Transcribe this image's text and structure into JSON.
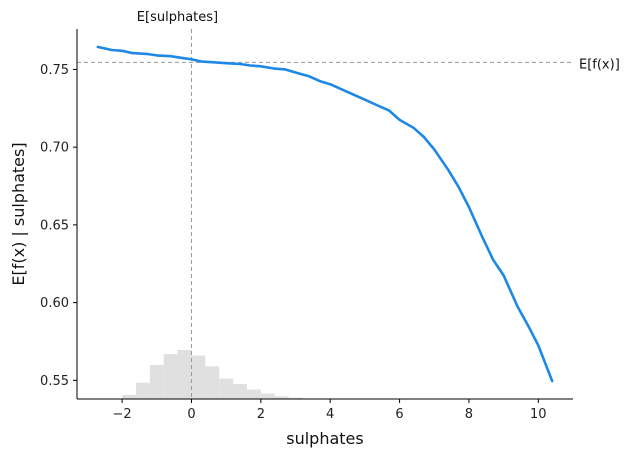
{
  "chart_data": {
    "type": "line",
    "xlabel": "sulphates",
    "ylabel": "E[f(x) | sulphates]",
    "xlim": [
      -3.3,
      11.0
    ],
    "ylim": [
      0.538,
      0.776
    ],
    "x_ticks": [
      -2,
      0,
      2,
      4,
      6,
      8,
      10
    ],
    "x_tick_labels": [
      "−2",
      "0",
      "2",
      "4",
      "6",
      "8",
      "10"
    ],
    "y_ticks": [
      0.55,
      0.6,
      0.65,
      0.7,
      0.75
    ],
    "y_tick_labels": [
      "0.55",
      "0.60",
      "0.65",
      "0.70",
      "0.75"
    ],
    "reference_lines": {
      "vertical": {
        "x": 0,
        "label": "E[sulphates]"
      },
      "horizontal": {
        "y": 0.7545,
        "label": "E[f(x)]"
      }
    },
    "colors": {
      "line": "#1E88E5",
      "histogram": "#e0e0e0",
      "reference": "#999999",
      "axis": "#000000"
    },
    "series": [
      {
        "x": [
          -2.7,
          -2.3,
          -2.0,
          -1.7,
          -1.3,
          -1.0,
          -0.6,
          -0.3,
          0.0,
          0.3,
          0.7,
          1.0,
          1.4,
          1.7,
          2.0,
          2.4,
          2.7,
          3.0,
          3.4,
          3.7,
          4.0,
          4.4,
          4.7,
          5.0,
          5.4,
          5.7,
          6.0,
          6.4,
          6.7,
          7.0,
          7.4,
          7.7,
          8.0,
          8.4,
          8.7,
          9.0,
          9.4,
          9.7,
          10.0,
          10.4
        ],
        "values": [
          0.7645,
          0.7625,
          0.762,
          0.7605,
          0.76,
          0.759,
          0.7585,
          0.7575,
          0.7565,
          0.755,
          0.7545,
          0.754,
          0.7535,
          0.7525,
          0.752,
          0.7505,
          0.75,
          0.748,
          0.7455,
          0.7425,
          0.7405,
          0.7365,
          0.7335,
          0.7305,
          0.7265,
          0.7235,
          0.7175,
          0.7125,
          0.7065,
          0.6985,
          0.6855,
          0.6745,
          0.6615,
          0.6415,
          0.6275,
          0.6175,
          0.5975,
          0.5855,
          0.5725,
          0.5495
        ]
      }
    ],
    "histogram": {
      "bin_width": 0.4,
      "bins_start": [
        -2.4,
        -2.0,
        -1.6,
        -1.2,
        -0.8,
        -0.4,
        0.0,
        0.4,
        0.8,
        1.2,
        1.6,
        2.0,
        2.4,
        2.8
      ],
      "heights": [
        0.0,
        0.003,
        0.012,
        0.025,
        0.033,
        0.036,
        0.032,
        0.024,
        0.015,
        0.011,
        0.007,
        0.004,
        0.002,
        0.001
      ]
    }
  }
}
